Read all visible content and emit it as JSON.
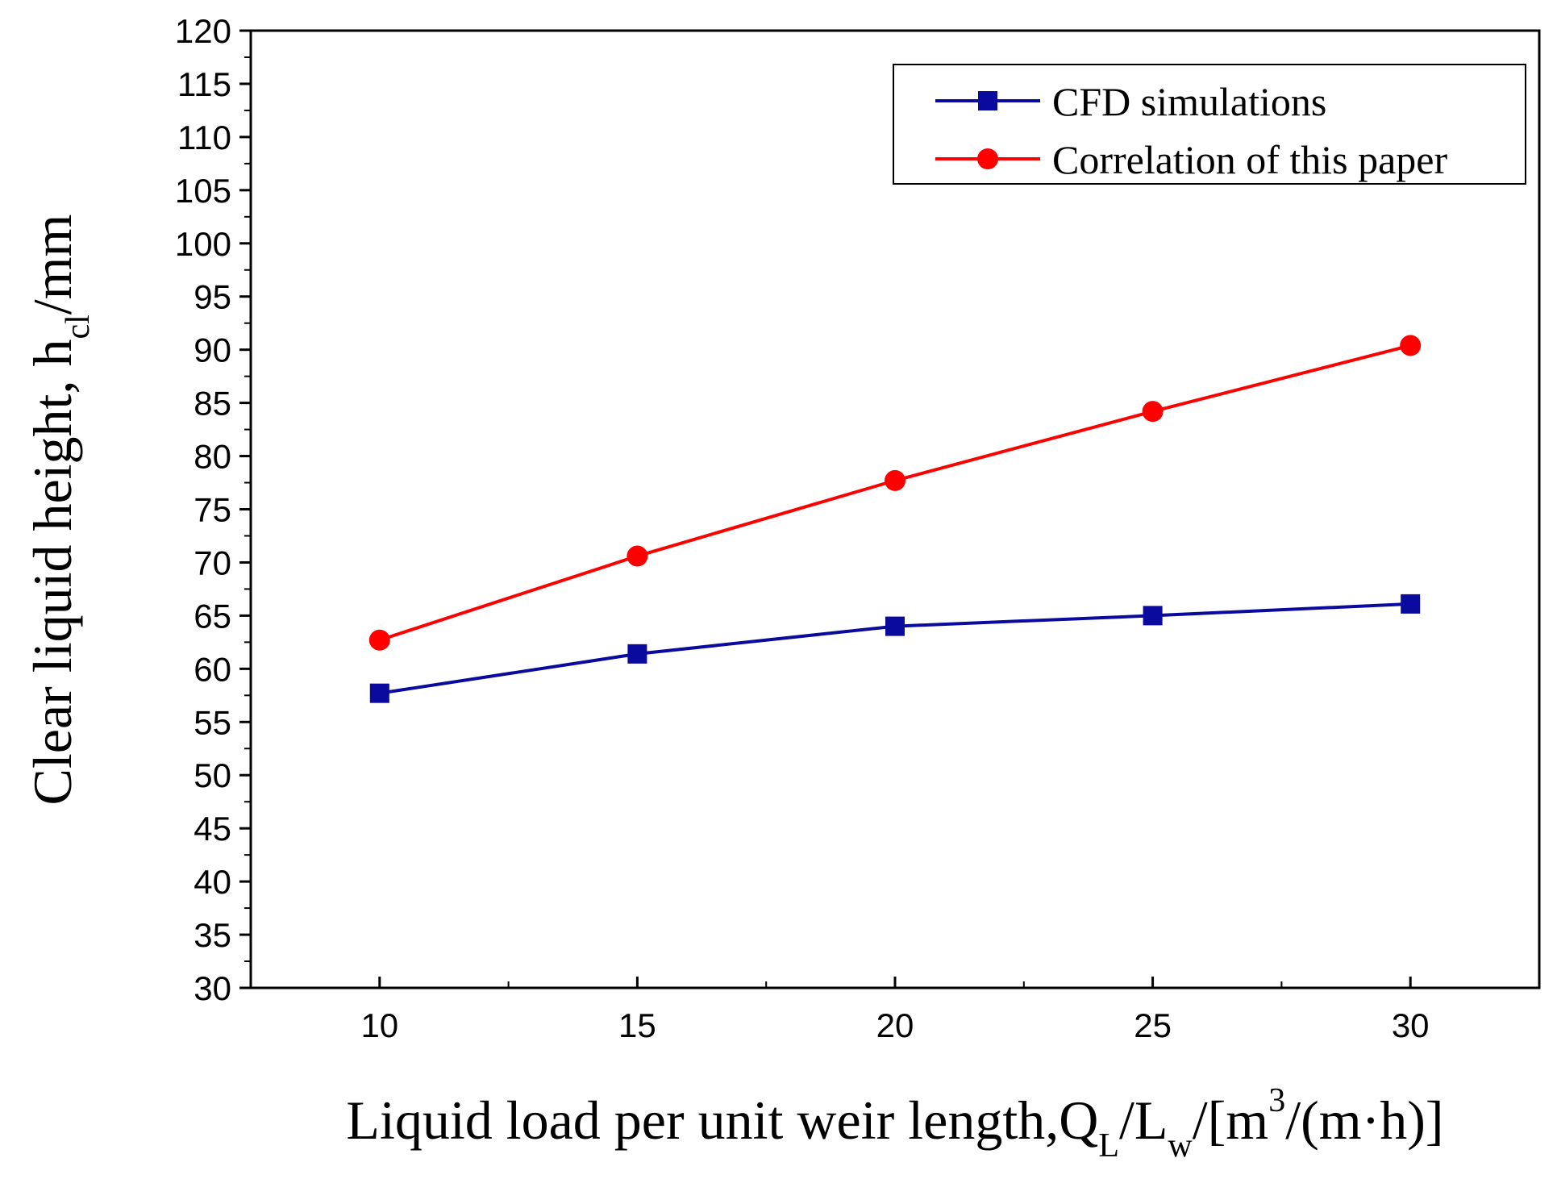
{
  "chart_data": {
    "type": "line",
    "x": [
      10,
      15,
      20,
      25,
      30
    ],
    "xlim": [
      7.5,
      32.5
    ],
    "ylim": [
      30,
      120
    ],
    "x_ticks": [
      10,
      15,
      20,
      25,
      30
    ],
    "y_ticks": [
      30,
      35,
      40,
      45,
      50,
      55,
      60,
      65,
      70,
      75,
      80,
      85,
      90,
      95,
      100,
      105,
      110,
      115,
      120
    ],
    "xlabel": {
      "main": "Liquid load per unit weir length,Q",
      "sub1": "L",
      "mid": "/L",
      "sub2": "w",
      "pre_sup": "/[m",
      "sup": "3",
      "post": "/(m·h)]"
    },
    "ylabel": {
      "main": "Clear liquid height, h",
      "sub": "cl",
      "post": "/mm"
    },
    "series": [
      {
        "name": "CFD simulations",
        "color": "#0a0a9e",
        "marker": "square",
        "values": [
          57.7,
          61.4,
          64.0,
          65.0,
          66.1
        ]
      },
      {
        "name": "Correlation of this paper",
        "color": "#ff0000",
        "marker": "circle",
        "values": [
          62.7,
          70.6,
          77.7,
          84.2,
          90.4
        ]
      }
    ],
    "legend": "top-right",
    "grid": false
  }
}
